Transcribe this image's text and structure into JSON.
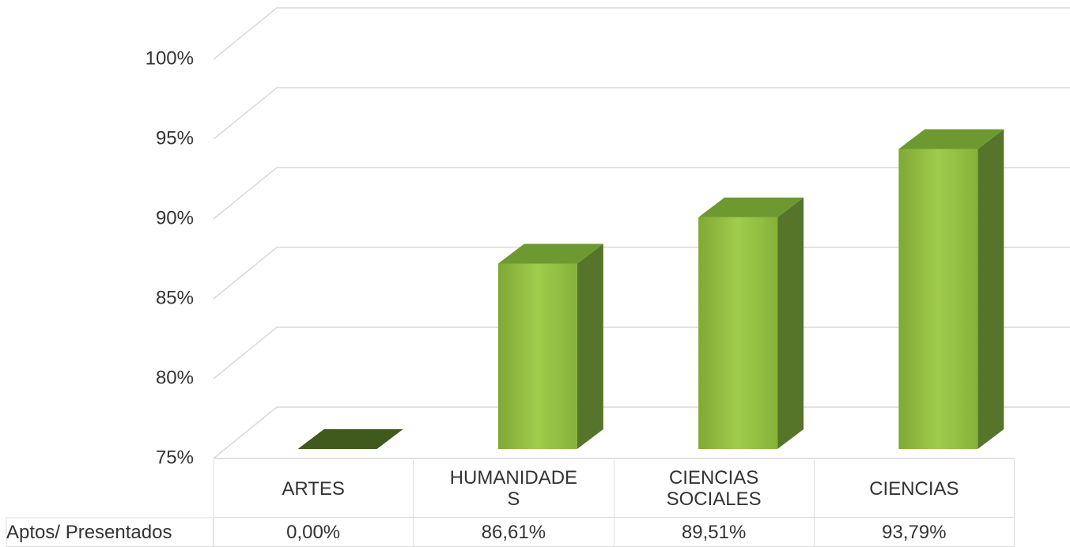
{
  "chart_data": {
    "type": "bar3d",
    "categories": [
      "ARTES",
      "HUMANIDADE S",
      "CIENCIAS SOCIALES",
      "CIENCIAS"
    ],
    "series": [
      {
        "name": "Aptos/ Presentados",
        "color": "#8fbc3f",
        "values": [
          0,
          86.61,
          89.51,
          93.79
        ],
        "value_labels": [
          "0,00%",
          "86,61%",
          "89,51%",
          "93,79%"
        ]
      }
    ],
    "ylim": [
      75,
      100
    ],
    "yticks": [
      {
        "value": 75,
        "label": "75%"
      },
      {
        "value": 80,
        "label": "80%"
      },
      {
        "value": 85,
        "label": "85%"
      },
      {
        "value": 90,
        "label": "90%"
      },
      {
        "value": 95,
        "label": "95%"
      },
      {
        "value": 100,
        "label": "100%"
      }
    ],
    "grid": true
  }
}
